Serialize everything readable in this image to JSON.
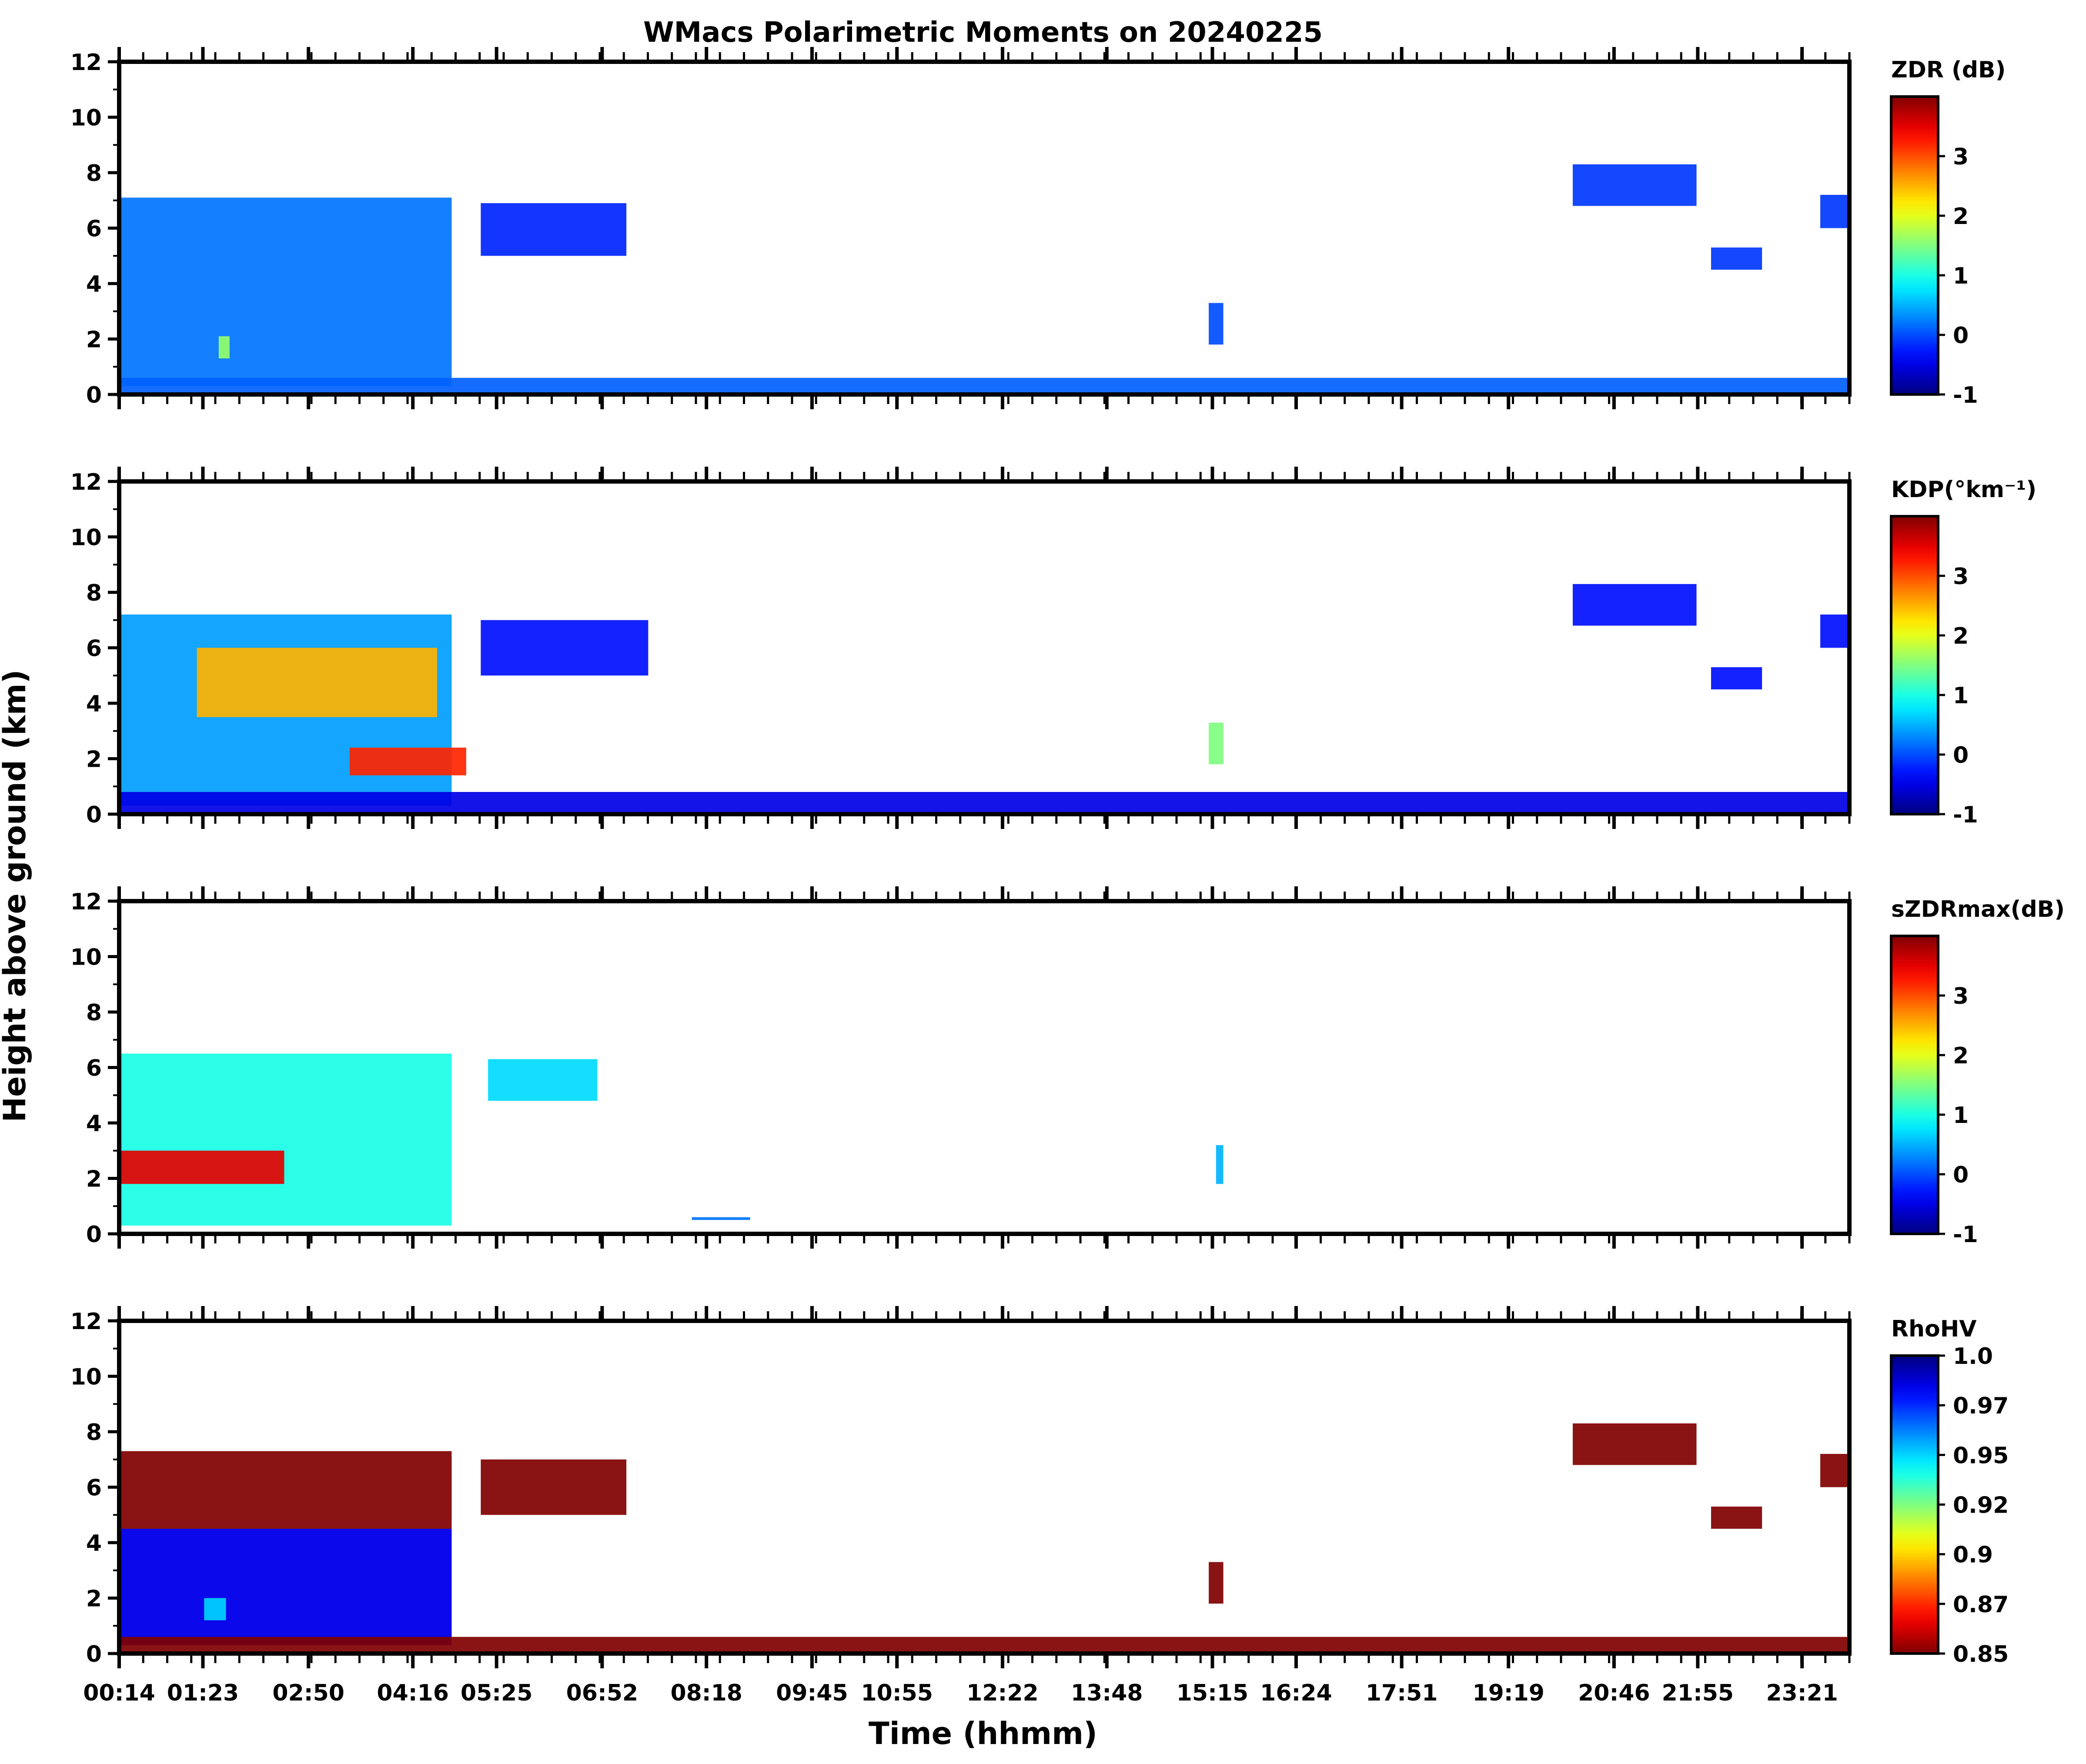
{
  "chart_data": {
    "type": "heatmap",
    "title": "WMacs Polarimetric Moments on 20240225",
    "xlabel": "Time (hhmm)",
    "ylabel": "Height above ground (km)",
    "x_tick_labels": [
      "00:14",
      "01:23",
      "02:50",
      "04:16",
      "05:25",
      "06:52",
      "08:18",
      "09:45",
      "10:55",
      "12:22",
      "13:48",
      "15:15",
      "16:24",
      "17:51",
      "19:19",
      "20:46",
      "21:55",
      "23:21"
    ],
    "x_tick_hours": [
      0.233,
      1.383,
      2.833,
      4.267,
      5.417,
      6.867,
      8.3,
      9.75,
      10.917,
      12.367,
      13.8,
      15.25,
      16.4,
      17.85,
      19.317,
      20.767,
      21.917,
      23.35
    ],
    "x_range_hours": [
      0.233,
      24.0
    ],
    "y_range_km": [
      0,
      12
    ],
    "y_ticks": [
      0,
      2,
      4,
      6,
      8,
      10,
      12
    ],
    "grid": false,
    "panels": [
      {
        "id": "zdr",
        "colorbar_label": "ZDR (dB)",
        "colormap": "jet",
        "clim": [
          -1,
          4
        ],
        "colorbar_ticks": [
          "-1",
          "0",
          "1",
          "2",
          "3"
        ],
        "colorbar_tick_values": [
          -1,
          0,
          1,
          2,
          3
        ],
        "regions": [
          {
            "t0": 0.25,
            "t1": 4.8,
            "h0": 0.3,
            "h1": 7.1,
            "value": 0.2
          },
          {
            "t0": 1.6,
            "t1": 1.75,
            "h0": 1.3,
            "h1": 2.1,
            "value": 1.6
          },
          {
            "t0": 5.2,
            "t1": 7.2,
            "h0": 5.0,
            "h1": 6.9,
            "value": -0.2
          },
          {
            "t0": 15.2,
            "t1": 15.4,
            "h0": 1.8,
            "h1": 3.3,
            "value": 0.0
          },
          {
            "t0": 20.2,
            "t1": 21.9,
            "h0": 6.8,
            "h1": 8.3,
            "value": -0.1
          },
          {
            "t0": 22.1,
            "t1": 22.8,
            "h0": 4.5,
            "h1": 5.3,
            "value": -0.1
          },
          {
            "t0": 23.6,
            "t1": 24.0,
            "h0": 6.0,
            "h1": 7.2,
            "value": -0.1
          },
          {
            "t0": 0.25,
            "t1": 24.0,
            "h0": 0.0,
            "h1": 0.6,
            "value": 0.1
          }
        ]
      },
      {
        "id": "kdp",
        "colorbar_label": "KDP(°km⁻¹)",
        "colormap": "jet",
        "clim": [
          -1,
          4
        ],
        "colorbar_ticks": [
          "-1",
          "0",
          "1",
          "2",
          "3"
        ],
        "colorbar_tick_values": [
          -1,
          0,
          1,
          2,
          3
        ],
        "regions": [
          {
            "t0": 0.25,
            "t1": 4.8,
            "h0": 0.3,
            "h1": 7.2,
            "value": 0.4
          },
          {
            "t0": 1.3,
            "t1": 4.6,
            "h0": 3.5,
            "h1": 6.0,
            "value": 2.5
          },
          {
            "t0": 3.4,
            "t1": 5.0,
            "h0": 1.4,
            "h1": 2.4,
            "value": 3.2
          },
          {
            "t0": 5.2,
            "t1": 7.5,
            "h0": 5.0,
            "h1": 7.0,
            "value": -0.3
          },
          {
            "t0": 15.2,
            "t1": 15.4,
            "h0": 1.8,
            "h1": 3.3,
            "value": 1.5
          },
          {
            "t0": 20.2,
            "t1": 21.9,
            "h0": 6.8,
            "h1": 8.3,
            "value": -0.3
          },
          {
            "t0": 22.1,
            "t1": 22.8,
            "h0": 4.5,
            "h1": 5.3,
            "value": -0.3
          },
          {
            "t0": 23.6,
            "t1": 24.0,
            "h0": 6.0,
            "h1": 7.2,
            "value": -0.3
          },
          {
            "t0": 0.25,
            "t1": 24.0,
            "h0": 0.0,
            "h1": 0.8,
            "value": -0.5
          }
        ]
      },
      {
        "id": "szdrmax",
        "colorbar_label": "sZDRmax(dB)",
        "colormap": "jet",
        "clim": [
          -1,
          4
        ],
        "colorbar_ticks": [
          "-1",
          "0",
          "1",
          "2",
          "3"
        ],
        "colorbar_tick_values": [
          -1,
          0,
          1,
          2,
          3
        ],
        "regions": [
          {
            "t0": 0.25,
            "t1": 4.8,
            "h0": 0.3,
            "h1": 6.5,
            "value": 1.0
          },
          {
            "t0": 0.25,
            "t1": 2.5,
            "h0": 1.8,
            "h1": 3.0,
            "value": 3.5
          },
          {
            "t0": 5.3,
            "t1": 6.8,
            "h0": 4.8,
            "h1": 6.3,
            "value": 0.7
          },
          {
            "t0": 8.1,
            "t1": 8.9,
            "h0": 0.5,
            "h1": 0.6,
            "value": 0.2
          },
          {
            "t0": 15.3,
            "t1": 15.4,
            "h0": 1.8,
            "h1": 3.2,
            "value": 0.5
          }
        ]
      },
      {
        "id": "rhohv",
        "colorbar_label": "RhoHV",
        "colormap": "jet_r",
        "clim": [
          0.85,
          1.0
        ],
        "colorbar_ticks": [
          "0.85",
          "0.87",
          "0.9",
          "0.92",
          "0.95",
          "0.97",
          "1.0"
        ],
        "colorbar_tick_values": [
          0.85,
          0.875,
          0.9,
          0.925,
          0.95,
          0.975,
          1.0
        ],
        "regions": [
          {
            "t0": 0.25,
            "t1": 4.8,
            "h0": 0.3,
            "h1": 7.3,
            "value": 0.85
          },
          {
            "t0": 0.25,
            "t1": 4.8,
            "h0": 0.3,
            "h1": 4.5,
            "value": 0.98
          },
          {
            "t0": 1.4,
            "t1": 1.7,
            "h0": 1.2,
            "h1": 2.0,
            "value": 0.95
          },
          {
            "t0": 5.2,
            "t1": 7.2,
            "h0": 5.0,
            "h1": 7.0,
            "value": 0.85
          },
          {
            "t0": 15.2,
            "t1": 15.4,
            "h0": 1.8,
            "h1": 3.3,
            "value": 0.85
          },
          {
            "t0": 20.2,
            "t1": 21.9,
            "h0": 6.8,
            "h1": 8.3,
            "value": 0.85
          },
          {
            "t0": 22.1,
            "t1": 22.8,
            "h0": 4.5,
            "h1": 5.3,
            "value": 0.85
          },
          {
            "t0": 23.6,
            "t1": 24.0,
            "h0": 6.0,
            "h1": 7.2,
            "value": 0.85
          },
          {
            "t0": 0.25,
            "t1": 24.0,
            "h0": 0.0,
            "h1": 0.6,
            "value": 0.85
          }
        ]
      }
    ]
  }
}
